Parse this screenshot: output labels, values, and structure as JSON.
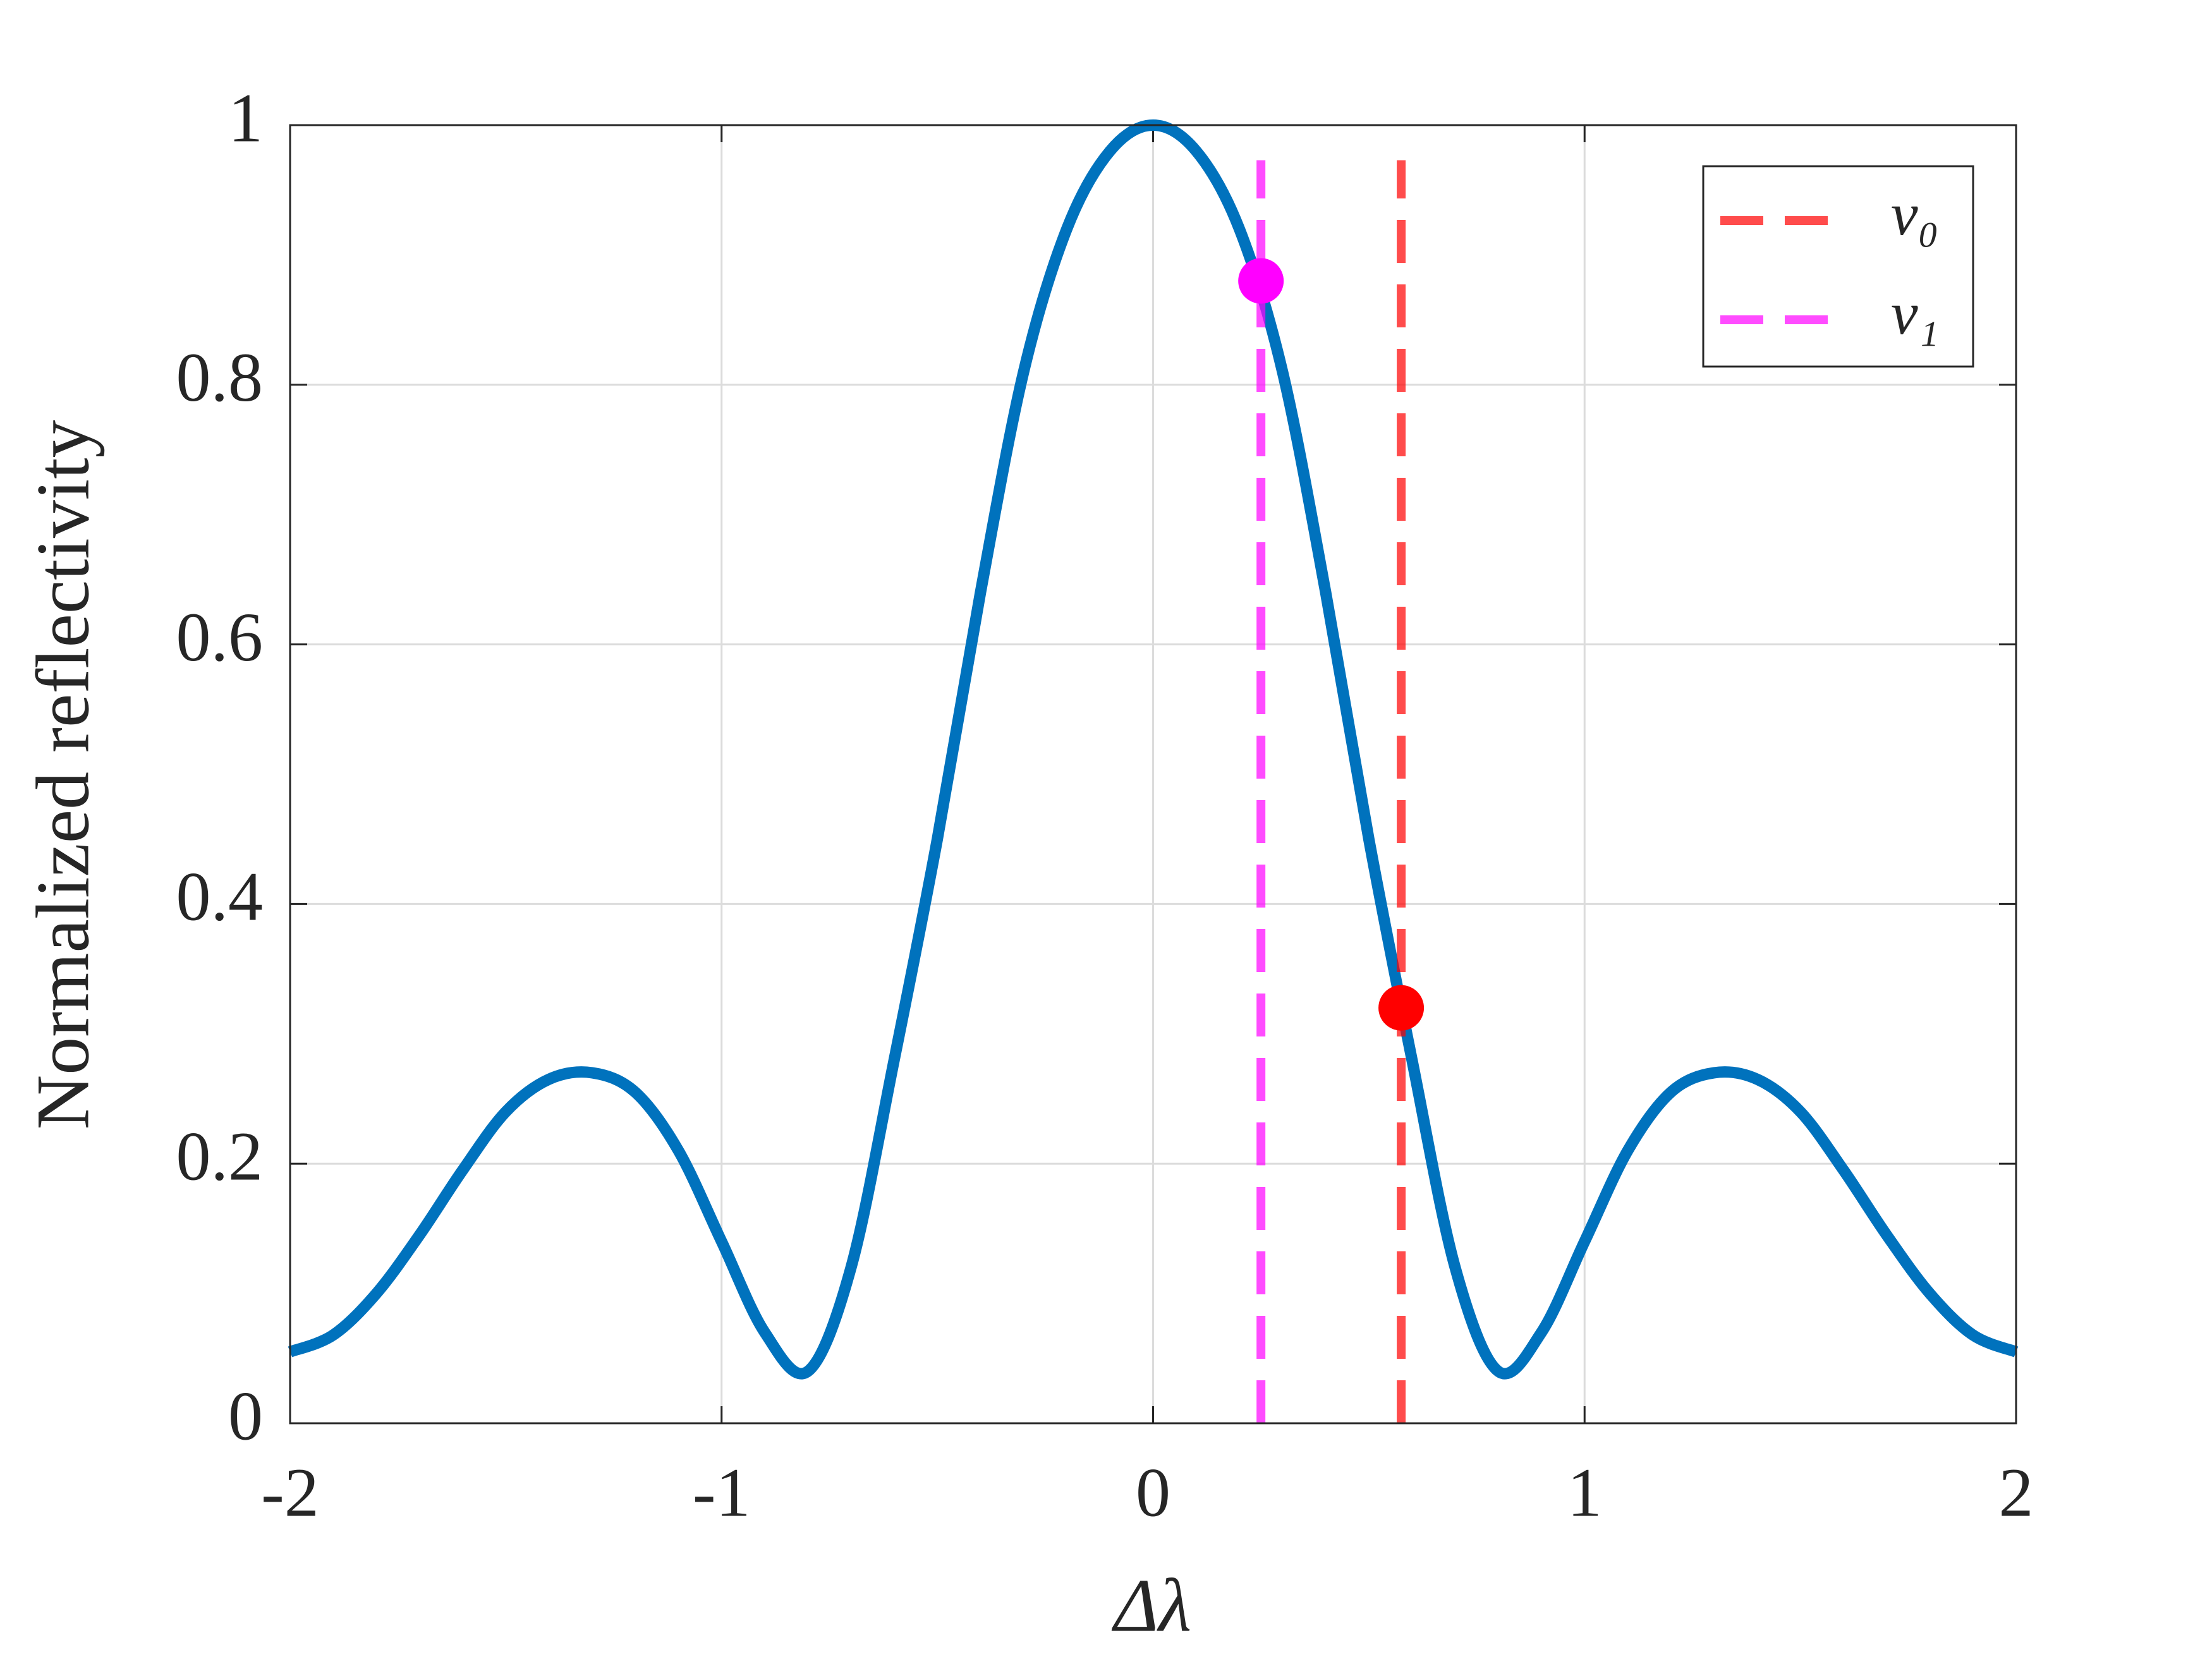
{
  "chart_data": {
    "type": "line",
    "xlabel": "Δλ",
    "ylabel": "Normalized reflectivity",
    "x": [
      -2,
      -1.9,
      -1.8,
      -1.7,
      -1.6,
      -1.5,
      -1.4,
      -1.3,
      -1.2,
      -1.1,
      -1,
      -0.9,
      -0.8,
      -0.7,
      -0.6,
      -0.5,
      -0.4,
      -0.3,
      -0.2,
      -0.1,
      0,
      0.1,
      0.2,
      0.3,
      0.4,
      0.5,
      0.6,
      0.7,
      0.8,
      0.9,
      1,
      1.1,
      1.2,
      1.3,
      1.4,
      1.5,
      1.6,
      1.7,
      1.8,
      1.9,
      2
    ],
    "series": [
      {
        "color": "#0072bd",
        "values": [
          0.055,
          0.068,
          0.1,
          0.145,
          0.195,
          0.24,
          0.265,
          0.27,
          0.255,
          0.21,
          0.14,
          0.07,
          0.04,
          0.12,
          0.28,
          0.45,
          0.64,
          0.81,
          0.92,
          0.98,
          1,
          0.98,
          0.92,
          0.81,
          0.64,
          0.45,
          0.28,
          0.12,
          0.04,
          0.07,
          0.14,
          0.21,
          0.255,
          0.27,
          0.265,
          0.24,
          0.195,
          0.145,
          0.1,
          0.068,
          0.055
        ]
      }
    ],
    "vlines": [
      {
        "name": "ν₀",
        "x": 0.575,
        "y": [
          0,
          0.973
        ],
        "color": "#ff0000"
      },
      {
        "name": "ν₁",
        "x": 0.25,
        "y": [
          0,
          0.973
        ],
        "color": "#ff00ff"
      }
    ],
    "points": [
      {
        "x": 0.25,
        "y": 0.88,
        "color": "#ff00ff"
      },
      {
        "x": 0.575,
        "y": 0.32,
        "color": "#ff0000"
      }
    ],
    "xlim": [
      -2,
      2
    ],
    "xticks": [
      -2,
      -1,
      0,
      1,
      2
    ],
    "ylim": [
      0,
      1
    ],
    "yticks": [
      0,
      0.2,
      0.4,
      0.6,
      0.8,
      1
    ],
    "grid": true,
    "legend": "upper right"
  }
}
